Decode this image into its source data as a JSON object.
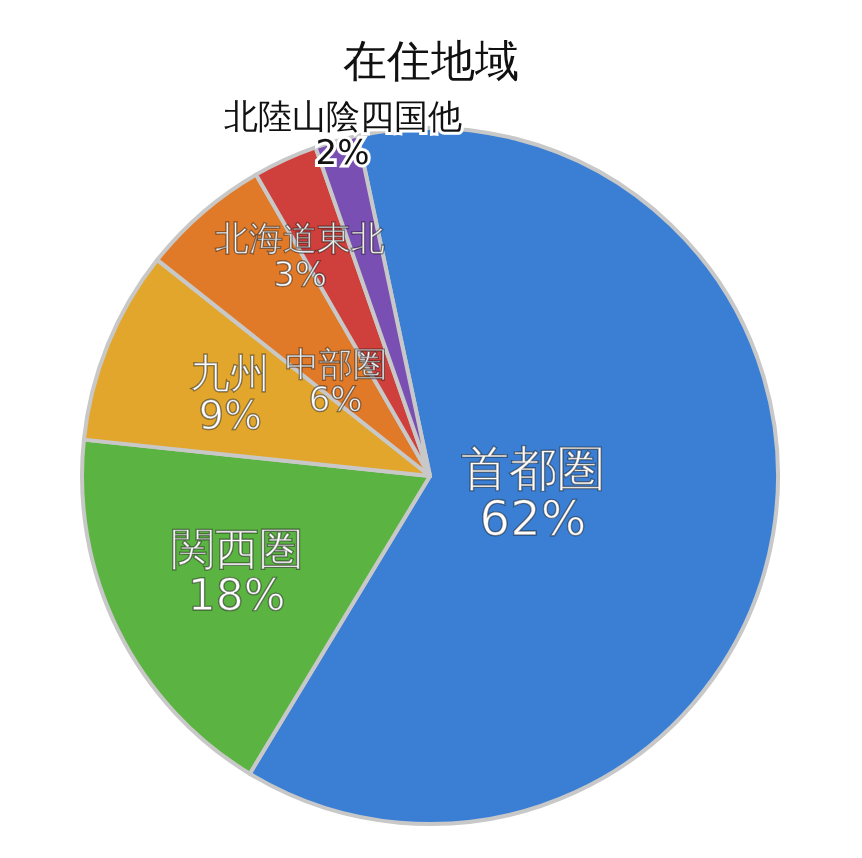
{
  "chart_data": {
    "type": "pie",
    "title": "在住地域",
    "categories": [
      "首都圏",
      "関西圏",
      "九州",
      "中部圏",
      "北海道東北",
      "北陸山陰四国他"
    ],
    "values": [
      62,
      18,
      9,
      6,
      3,
      2
    ],
    "value_labels": [
      "62%",
      "18%",
      "9%",
      "6%",
      "3%",
      "2%"
    ],
    "colors": [
      "#3b7fd4",
      "#5bb442",
      "#e1a62b",
      "#e07a28",
      "#cf3f3b",
      "#7a4fb3"
    ]
  }
}
